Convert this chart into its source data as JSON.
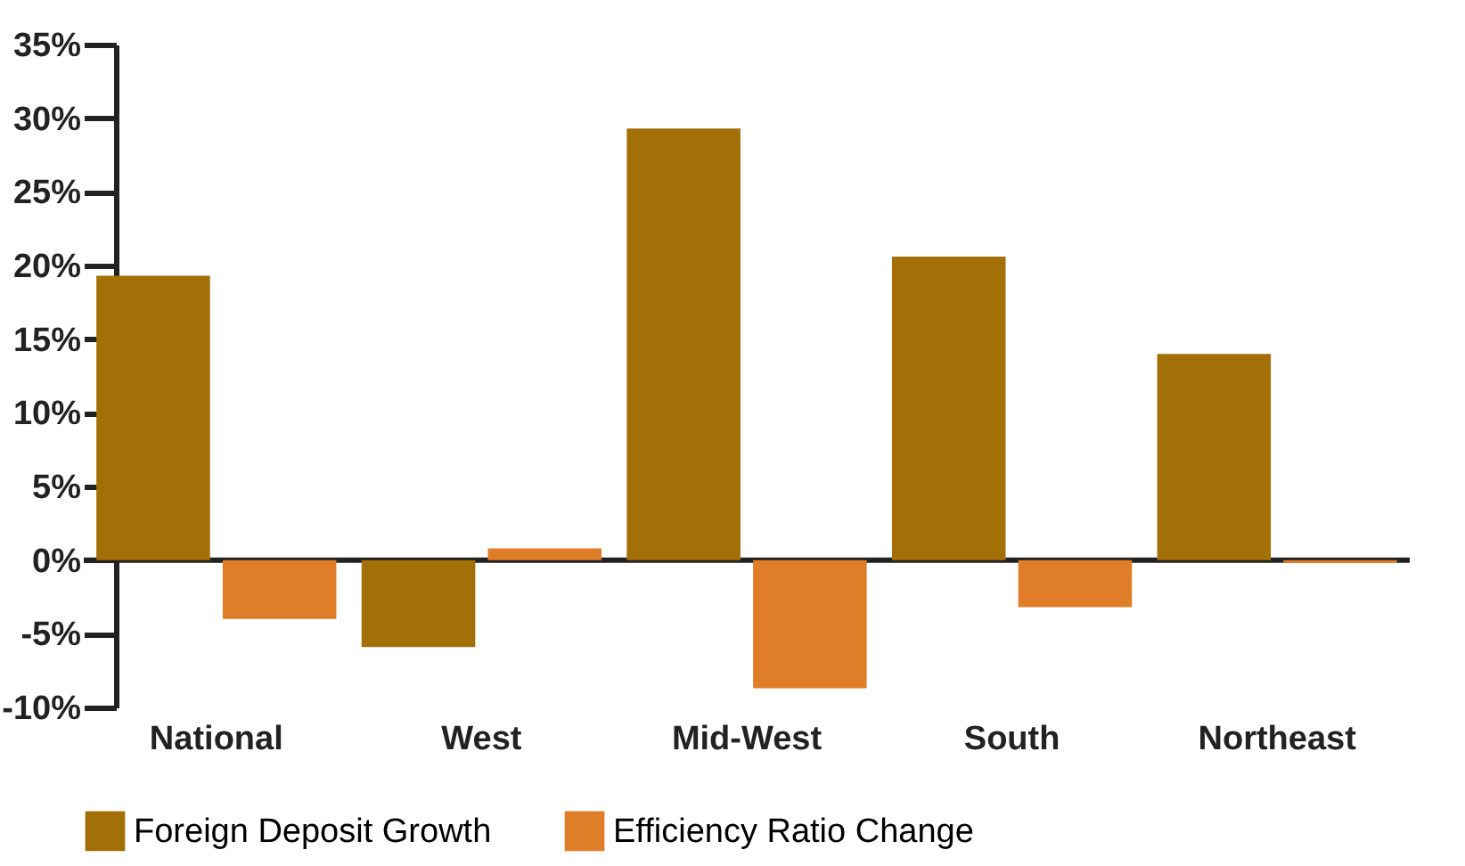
{
  "chart_data": {
    "type": "bar",
    "categories": [
      "National",
      "West",
      "Mid-West",
      "South",
      "Northeast"
    ],
    "series": [
      {
        "name": "Foreign Deposit Growth",
        "color": "#a36f07",
        "values": [
          19.3,
          -5.9,
          29.3,
          20.6,
          14.0
        ]
      },
      {
        "name": "Efficiency Ratio Change",
        "color": "#e07d28",
        "values": [
          -4.0,
          0.8,
          -8.7,
          -3.2,
          -0.2
        ]
      }
    ],
    "ylim": [
      -10,
      35
    ],
    "yticks": [
      {
        "value": -10,
        "label": "-10%"
      },
      {
        "value": -5,
        "label": "-5%"
      },
      {
        "value": 0,
        "label": "0%"
      },
      {
        "value": 5,
        "label": "5%"
      },
      {
        "value": 10,
        "label": "10%"
      },
      {
        "value": 15,
        "label": "15%"
      },
      {
        "value": 20,
        "label": "20%"
      },
      {
        "value": 25,
        "label": "25%"
      },
      {
        "value": 30,
        "label": "30%"
      },
      {
        "value": 35,
        "label": "35%"
      }
    ],
    "legend": "bottom"
  }
}
